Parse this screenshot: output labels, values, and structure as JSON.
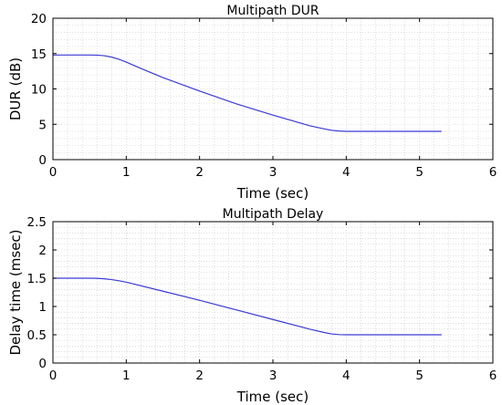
{
  "chart_data": [
    {
      "type": "line",
      "title": "Multipath DUR",
      "xlabel": "Time (sec)",
      "ylabel": "DUR (dB)",
      "xlim": [
        0,
        6
      ],
      "ylim": [
        0,
        20
      ],
      "xticks": [
        0,
        1,
        2,
        3,
        4,
        5,
        6
      ],
      "yticks": [
        0,
        5,
        10,
        15,
        20
      ],
      "grid": true,
      "line_color": "#3a3ad6",
      "series": [
        {
          "x": [
            0,
            0.5,
            0.6,
            0.7,
            0.8,
            0.9,
            1.0,
            1.2,
            1.5,
            2.0,
            2.5,
            3.0,
            3.5,
            3.7,
            3.8,
            3.9,
            4.0,
            4.5,
            5.0,
            5.3
          ],
          "y": [
            14.8,
            14.8,
            14.78,
            14.7,
            14.5,
            14.2,
            13.8,
            12.9,
            11.6,
            9.7,
            7.9,
            6.3,
            4.8,
            4.35,
            4.15,
            4.05,
            4.0,
            4.0,
            4.0,
            4.0
          ]
        }
      ]
    },
    {
      "type": "line",
      "title": "Multipath Delay",
      "xlabel": "Time (sec)",
      "ylabel": "Delay time (msec)",
      "xlim": [
        0,
        6
      ],
      "ylim": [
        0,
        2.5
      ],
      "xticks": [
        0,
        1,
        2,
        3,
        4,
        5,
        6
      ],
      "yticks": [
        0,
        0.5,
        1,
        1.5,
        2,
        2.5
      ],
      "grid": true,
      "line_color": "#3a3ad6",
      "series": [
        {
          "x": [
            0,
            0.5,
            0.6,
            0.7,
            0.8,
            0.9,
            1.0,
            1.5,
            2.0,
            2.5,
            3.0,
            3.5,
            3.7,
            3.8,
            3.9,
            4.0,
            4.5,
            5.0,
            5.3
          ],
          "y": [
            1.5,
            1.5,
            1.498,
            1.49,
            1.475,
            1.455,
            1.43,
            1.27,
            1.11,
            0.94,
            0.77,
            0.6,
            0.54,
            0.515,
            0.503,
            0.5,
            0.5,
            0.5,
            0.5
          ]
        }
      ]
    }
  ]
}
